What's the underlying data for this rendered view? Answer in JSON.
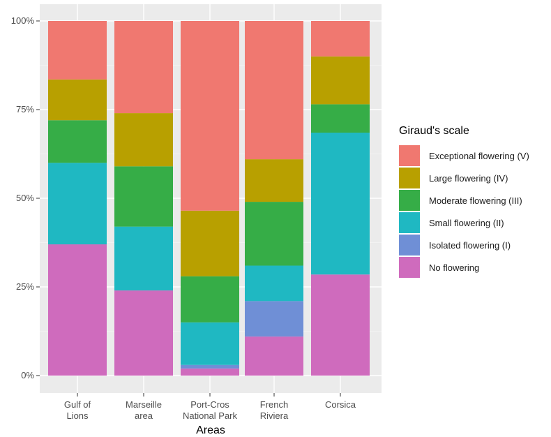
{
  "chart_data": {
    "type": "bar",
    "stacked": true,
    "normalized": true,
    "xlabel": "Areas",
    "ylabel": "",
    "ylim": [
      0,
      100
    ],
    "yticks": [
      0,
      25,
      50,
      75,
      100
    ],
    "ytick_labels": [
      "0%",
      "25%",
      "50%",
      "75%",
      "100%"
    ],
    "categories": [
      [
        "Gulf of",
        "Lions"
      ],
      [
        "Marseille",
        "area"
      ],
      [
        "Port-Cros",
        "National Park"
      ],
      [
        "French",
        "Riviera"
      ],
      [
        "Corsica"
      ]
    ],
    "legend_title": "Giraud's scale",
    "legend_position": "right",
    "grid": true,
    "background": "#ebebeb",
    "series": [
      {
        "name": "No flowering",
        "color": "#cf6bbd",
        "values": [
          37,
          24,
          2,
          11,
          28.5
        ]
      },
      {
        "name": "Isolated flowering (I)",
        "color": "#6f8fd6",
        "values": [
          0,
          0,
          1,
          10,
          0
        ]
      },
      {
        "name": "Small flowering (II)",
        "color": "#1fb8c2",
        "values": [
          23,
          18,
          12,
          10,
          40
        ]
      },
      {
        "name": "Moderate flowering (III)",
        "color": "#36ad47",
        "values": [
          12,
          17,
          13,
          18,
          8
        ]
      },
      {
        "name": "Large flowering (IV)",
        "color": "#b8a000",
        "values": [
          11.5,
          15,
          18.5,
          12,
          13.5
        ]
      },
      {
        "name": "Exceptional flowering (V)",
        "color": "#f07870",
        "values": [
          16.5,
          26,
          53.5,
          39,
          10
        ]
      }
    ]
  }
}
